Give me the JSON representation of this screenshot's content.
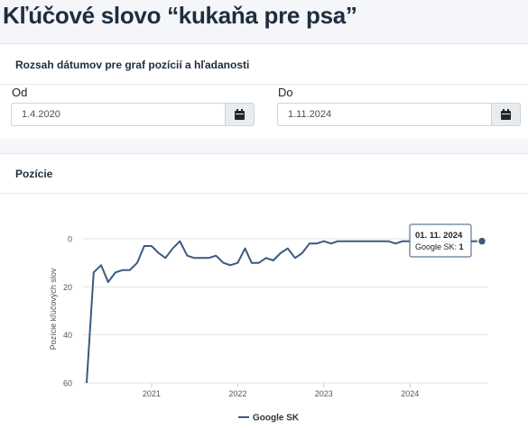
{
  "page": {
    "title": "Kľúčové slovo “kukaňa pre psa”"
  },
  "date_range": {
    "header": "Rozsah dátumov pre graf pozícií a hľadanosti",
    "from_label": "Od",
    "from_value": "1.4.2020",
    "to_label": "Do",
    "to_value": "1.11.2024"
  },
  "positions": {
    "header": "Pozície"
  },
  "tooltip": {
    "date": "01. 11. 2024",
    "series": "Google SK",
    "value": "1"
  },
  "colors": {
    "series": "#3b5a7f",
    "tooltip_border": "#3b5a7f"
  },
  "chart_data": {
    "type": "line",
    "ylabel": "Pozície kľúčových slov",
    "y_reversed": true,
    "ylim": [
      0,
      60
    ],
    "yticks": [
      0,
      20,
      40,
      60
    ],
    "xticks": [
      "2021",
      "2022",
      "2023",
      "2024"
    ],
    "legend": "bottom-center",
    "grid": true,
    "series": [
      {
        "name": "Google SK",
        "x": [
          "2020-04-01",
          "2020-05-01",
          "2020-06-01",
          "2020-07-01",
          "2020-08-01",
          "2020-09-01",
          "2020-10-01",
          "2020-11-01",
          "2020-12-01",
          "2021-01-01",
          "2021-02-01",
          "2021-03-01",
          "2021-04-01",
          "2021-05-01",
          "2021-06-01",
          "2021-07-01",
          "2021-08-01",
          "2021-09-01",
          "2021-10-01",
          "2021-11-01",
          "2021-12-01",
          "2022-01-01",
          "2022-02-01",
          "2022-03-01",
          "2022-04-01",
          "2022-05-01",
          "2022-06-01",
          "2022-07-01",
          "2022-08-01",
          "2022-09-01",
          "2022-10-01",
          "2022-11-01",
          "2022-12-01",
          "2023-01-01",
          "2023-02-01",
          "2023-03-01",
          "2023-04-01",
          "2023-05-01",
          "2023-06-01",
          "2023-07-01",
          "2023-08-01",
          "2023-09-01",
          "2023-10-01",
          "2023-11-01",
          "2023-12-01",
          "2024-01-01",
          "2024-02-01",
          "2024-03-01",
          "2024-04-01",
          "2024-05-01",
          "2024-06-01",
          "2024-07-01",
          "2024-08-01",
          "2024-09-01",
          "2024-10-01",
          "2024-11-01"
        ],
        "values": [
          60,
          14,
          11,
          18,
          14,
          13,
          13,
          10,
          3,
          3,
          6,
          8,
          4,
          1,
          7,
          8,
          8,
          8,
          7,
          10,
          11,
          10,
          4,
          10,
          10,
          8,
          9,
          6,
          4,
          8,
          6,
          2,
          2,
          1,
          2,
          1,
          1,
          1,
          1,
          1,
          1,
          1,
          1,
          2,
          1,
          1,
          2,
          1,
          1,
          1,
          1,
          1,
          1,
          1,
          1,
          1
        ]
      }
    ]
  }
}
